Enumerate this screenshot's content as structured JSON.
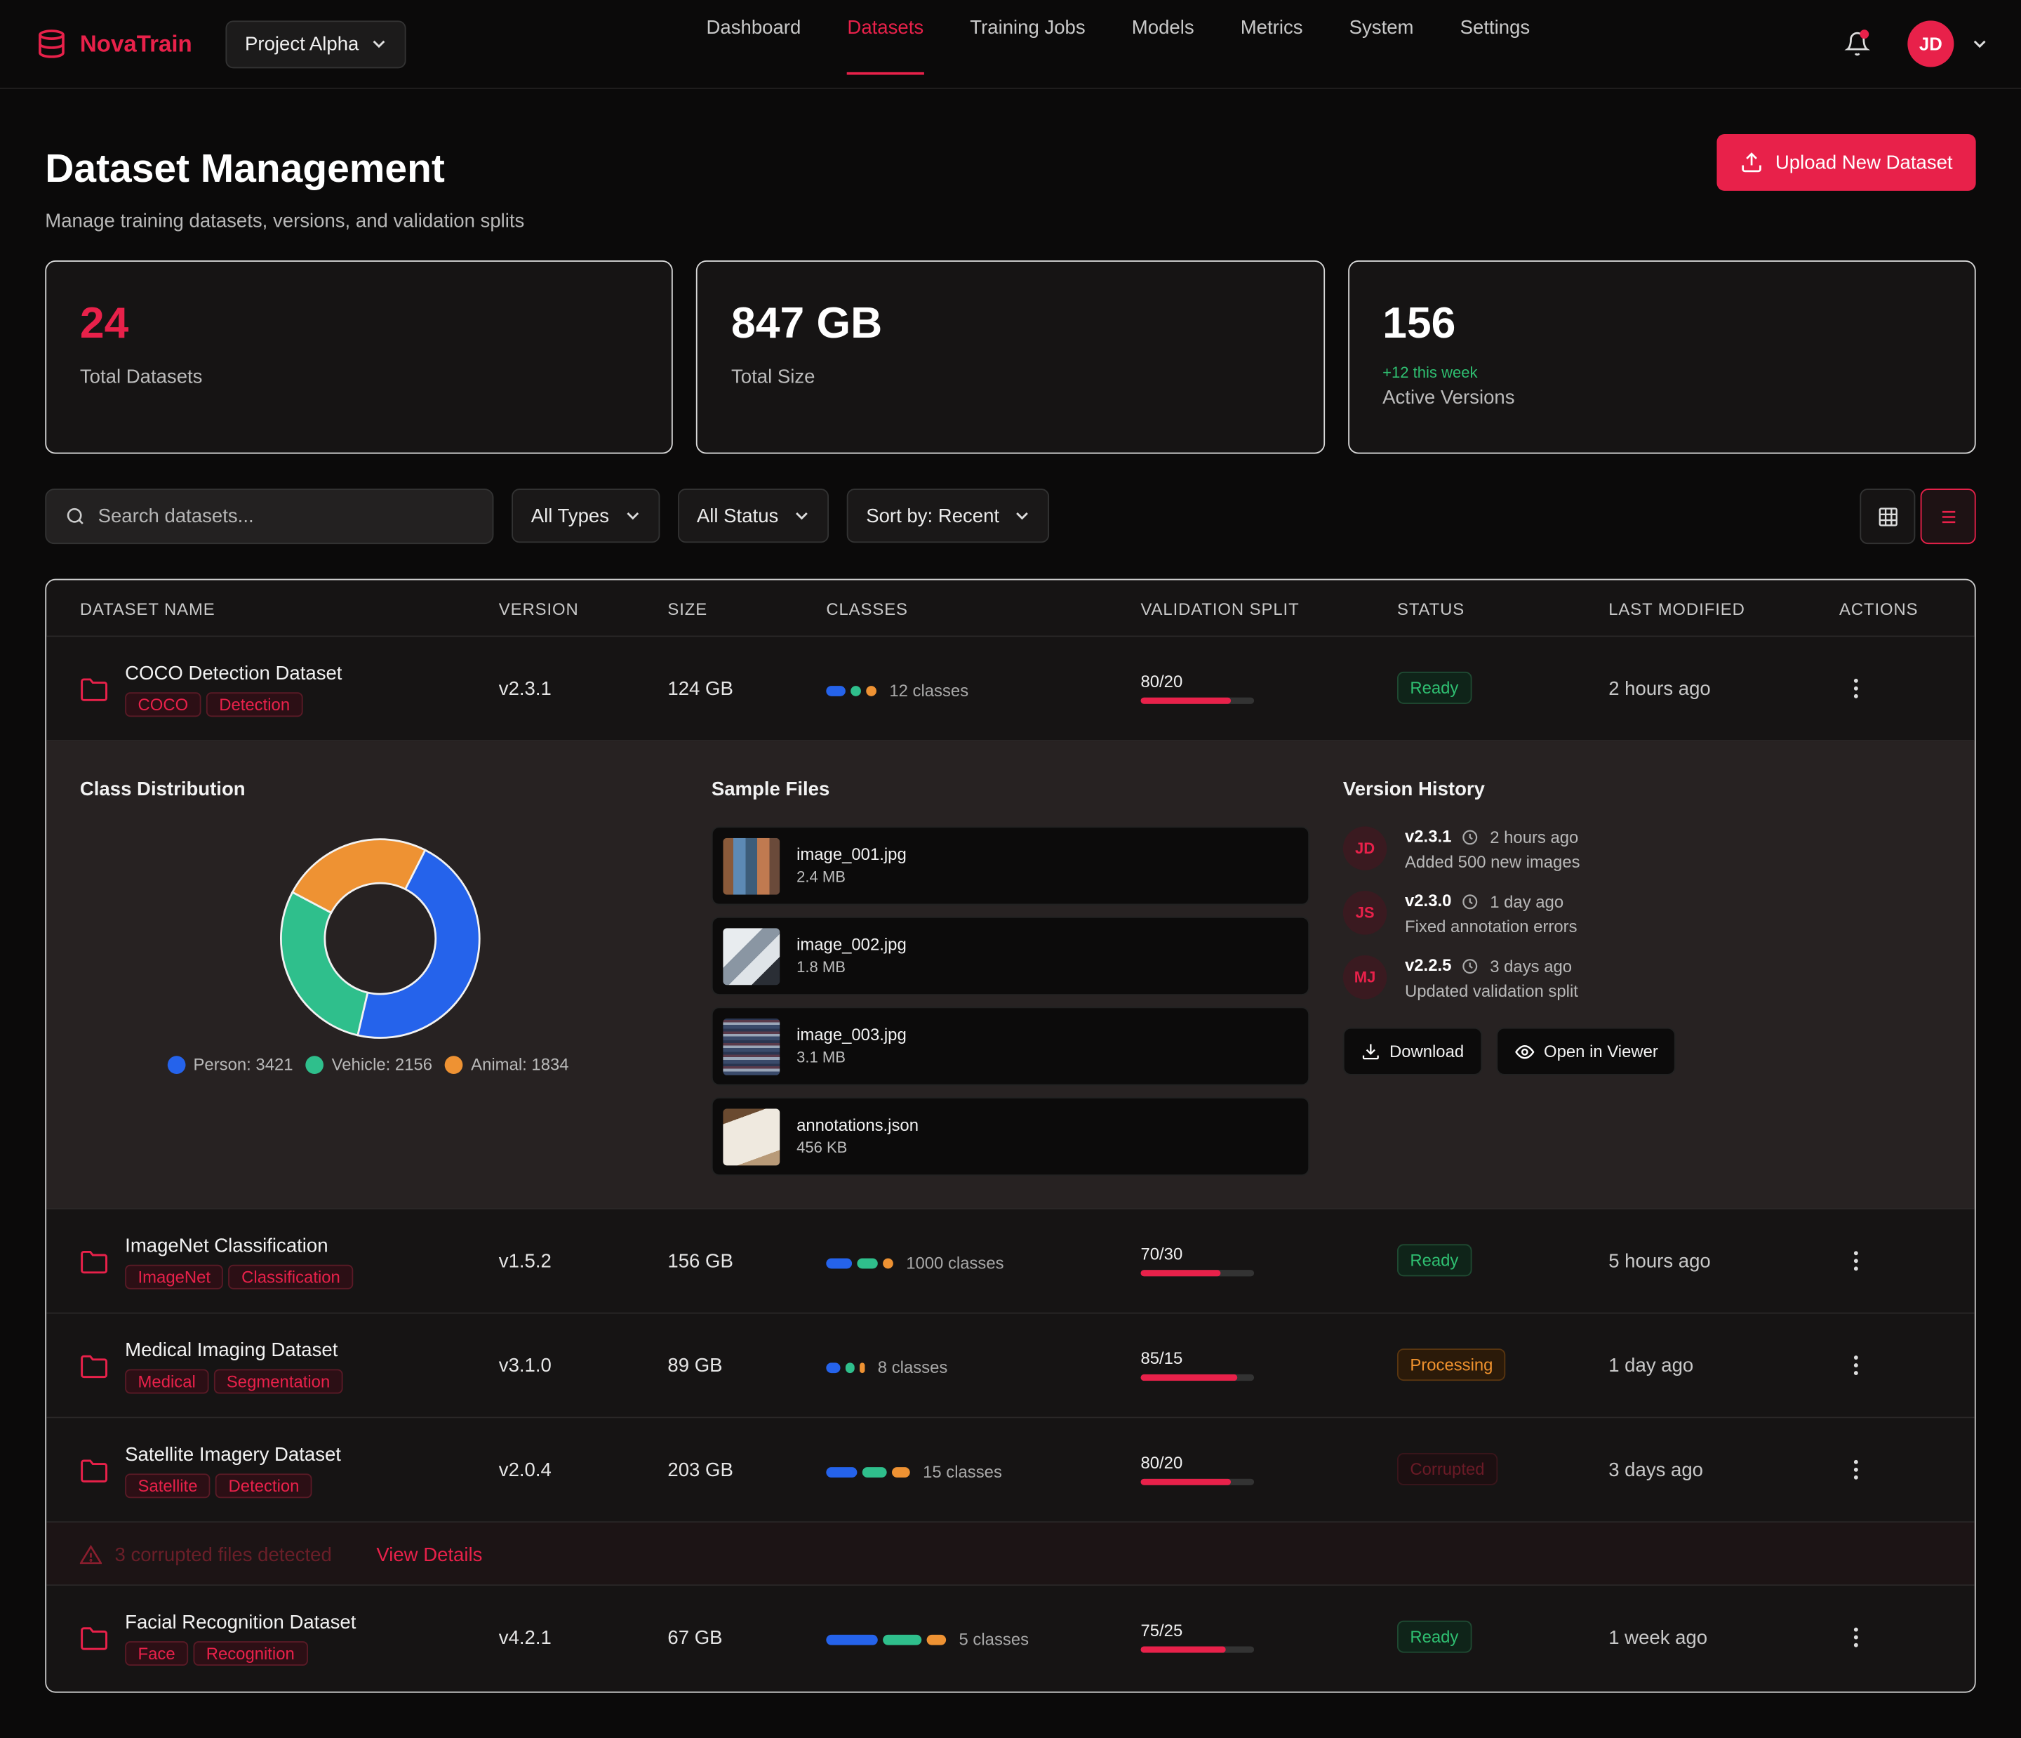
{
  "app": {
    "brand": "NovaTrain",
    "project": "Project Alpha",
    "nav": [
      "Dashboard",
      "Datasets",
      "Training Jobs",
      "Models",
      "Metrics",
      "System",
      "Settings"
    ],
    "active_nav": "Datasets",
    "user_initials": "JD",
    "accent": "#e8214a"
  },
  "header": {
    "title": "Dataset Management",
    "subtitle": "Manage training datasets, versions, and validation splits",
    "upload_label": "Upload New Dataset"
  },
  "stats": [
    {
      "value": "24",
      "label": "Total Datasets"
    },
    {
      "value": "847 GB",
      "label": "Total Size"
    },
    {
      "value": "156",
      "delta": "+12 this week",
      "label": "Active Versions"
    }
  ],
  "filters": {
    "search_placeholder": "Search datasets...",
    "type": "All Types",
    "status": "All Status",
    "sort": "Sort by: Recent"
  },
  "table": {
    "headers": [
      "DATASET NAME",
      "VERSION",
      "SIZE",
      "CLASSES",
      "VALIDATION SPLIT",
      "STATUS",
      "LAST MODIFIED",
      "ACTIONS"
    ],
    "rows": [
      {
        "name": "COCO Detection Dataset",
        "tags": [
          "COCO",
          "Detection"
        ],
        "version": "v2.3.1",
        "size": "124 GB",
        "classes": "12 classes",
        "split": "80/20",
        "split_train": 80,
        "status": "Ready",
        "modified": "2 hours ago"
      },
      {
        "name": "ImageNet Classification",
        "tags": [
          "ImageNet",
          "Classification"
        ],
        "version": "v1.5.2",
        "size": "156 GB",
        "classes": "1000 classes",
        "split": "70/30",
        "split_train": 70,
        "status": "Ready",
        "modified": "5 hours ago"
      },
      {
        "name": "Medical Imaging Dataset",
        "tags": [
          "Medical",
          "Segmentation"
        ],
        "version": "v3.1.0",
        "size": "89 GB",
        "classes": "8 classes",
        "split": "85/15",
        "split_train": 85,
        "status": "Processing",
        "modified": "1 day ago"
      },
      {
        "name": "Satellite Imagery Dataset",
        "tags": [
          "Satellite",
          "Detection"
        ],
        "version": "v2.0.4",
        "size": "203 GB",
        "classes": "15 classes",
        "split": "80/20",
        "split_train": 80,
        "status": "Corrupted",
        "modified": "3 days ago"
      },
      {
        "name": "Facial Recognition Dataset",
        "tags": [
          "Face",
          "Recognition"
        ],
        "version": "v4.2.1",
        "size": "67 GB",
        "classes": "5 classes",
        "split": "75/25",
        "split_train": 75,
        "status": "Ready",
        "modified": "1 week ago"
      }
    ]
  },
  "expanded": {
    "class_title": "Class Distribution",
    "files_title": "Sample Files",
    "history_title": "Version History",
    "class_distribution": [
      {
        "label": "Person: 3421",
        "value": 3421,
        "color": "#2563eb"
      },
      {
        "label": "Vehicle: 2156",
        "value": 2156,
        "color": "#2fbf8c"
      },
      {
        "label": "Animal: 1834",
        "value": 1834,
        "color": "#ee9233"
      }
    ],
    "files": [
      {
        "name": "image_001.jpg",
        "size": "2.4 MB"
      },
      {
        "name": "image_002.jpg",
        "size": "1.8 MB"
      },
      {
        "name": "image_003.jpg",
        "size": "3.1 MB"
      },
      {
        "name": "annotations.json",
        "size": "456 KB"
      }
    ],
    "history": [
      {
        "initials": "JD",
        "version": "v2.3.1",
        "time": "2 hours ago",
        "desc": "Added 500 new images"
      },
      {
        "initials": "JS",
        "version": "v2.3.0",
        "time": "1 day ago",
        "desc": "Fixed annotation errors"
      },
      {
        "initials": "MJ",
        "version": "v2.2.5",
        "time": "3 days ago",
        "desc": "Updated validation split"
      }
    ],
    "download_label": "Download",
    "viewer_label": "Open in Viewer"
  },
  "alert": {
    "text": "3 corrupted files detected",
    "link": "View Details"
  }
}
